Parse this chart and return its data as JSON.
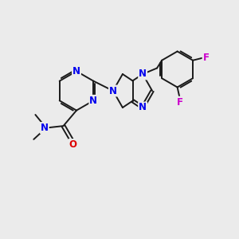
{
  "bg_color": "#ebebeb",
  "bond_color": "#1a1a1a",
  "N_color": "#0000ee",
  "O_color": "#dd0000",
  "F_color": "#cc00cc",
  "bond_lw": 1.4,
  "font_size": 8.5,
  "xlim": [
    0,
    10
  ],
  "ylim": [
    0,
    10
  ],
  "figsize": [
    3.0,
    3.0
  ],
  "dpi": 100
}
